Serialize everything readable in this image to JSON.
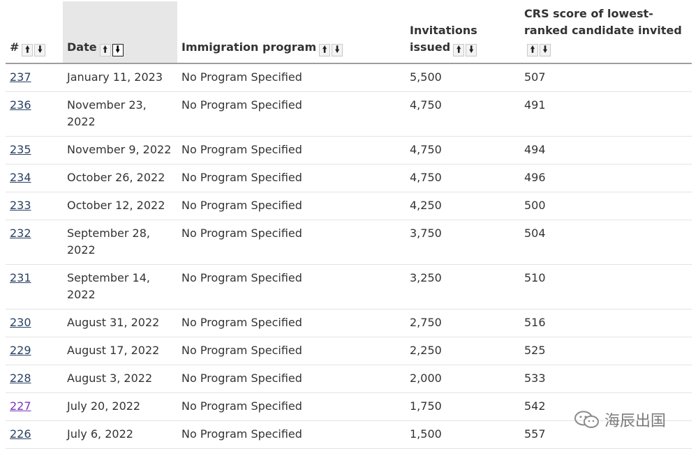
{
  "table": {
    "headers": {
      "index": "#",
      "date": "Date",
      "program": "Immigration program",
      "invitations": "Invitations issued",
      "crs": "CRS score of lowest-ranked candidate invited"
    },
    "sort_active": {
      "column": "date",
      "direction": "descending"
    },
    "rows": [
      {
        "num": "237",
        "date": "January 11, 2023",
        "program": "No Program Specified",
        "invitations": "5,500",
        "crs": "507"
      },
      {
        "num": "236",
        "date": "November 23, 2022",
        "program": "No Program Specified",
        "invitations": "4,750",
        "crs": "491"
      },
      {
        "num": "235",
        "date": "November 9, 2022",
        "program": "No Program Specified",
        "invitations": "4,750",
        "crs": "494"
      },
      {
        "num": "234",
        "date": "October 26, 2022",
        "program": "No Program Specified",
        "invitations": "4,750",
        "crs": "496"
      },
      {
        "num": "233",
        "date": "October 12, 2022",
        "program": "No Program Specified",
        "invitations": "4,250",
        "crs": "500"
      },
      {
        "num": "232",
        "date": "September 28, 2022",
        "program": "No Program Specified",
        "invitations": "3,750",
        "crs": "504"
      },
      {
        "num": "231",
        "date": "September 14, 2022",
        "program": "No Program Specified",
        "invitations": "3,250",
        "crs": "510"
      },
      {
        "num": "230",
        "date": "August 31, 2022",
        "program": "No Program Specified",
        "invitations": "2,750",
        "crs": "516"
      },
      {
        "num": "229",
        "date": "August 17, 2022",
        "program": "No Program Specified",
        "invitations": "2,250",
        "crs": "525"
      },
      {
        "num": "228",
        "date": "August 3, 2022",
        "program": "No Program Specified",
        "invitations": "2,000",
        "crs": "533"
      },
      {
        "num": "227",
        "date": "July 20, 2022",
        "program": "No Program Specified",
        "invitations": "1,750",
        "crs": "542",
        "visited": true
      },
      {
        "num": "226",
        "date": "July 6, 2022",
        "program": "No Program Specified",
        "invitations": "1,500",
        "crs": "557"
      }
    ]
  },
  "watermark": {
    "text": "海辰出国",
    "icon": "wechat-icon"
  },
  "colors": {
    "link": "#284162",
    "visited_link": "#7834bc",
    "sorted_header_bg": "#e7e7e7"
  }
}
